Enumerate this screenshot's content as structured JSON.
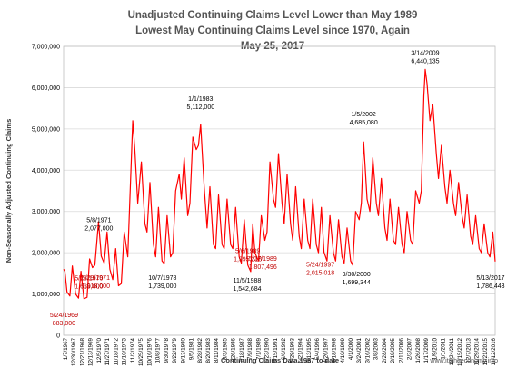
{
  "chart_data": {
    "type": "line",
    "title": [
      "Unadjusted Continuing Claims Level Lower than May 1989",
      "Lowest May Continuing Claims Level since 1970, Again",
      "May 25, 2017"
    ],
    "xlabel": "Continuing Claims Data 1967 to date",
    "ylabel": "Non-Seasonally Adjusted Continuing Claims",
    "ylim": [
      0,
      7000000
    ],
    "yticks": [
      "0",
      "1,000,000",
      "2,000,000",
      "3,000,000",
      "4,000,000",
      "5,000,000",
      "6,000,000",
      "7,000,000"
    ],
    "grid": true,
    "x_range": [
      "1967-01-07",
      "2017-05-13"
    ],
    "xtick_labels": [
      "1/7/1967",
      "12/30/1967",
      "12/21/1968",
      "12/13/1969",
      "12/5/1970",
      "11/27/1971",
      "11/18/1972",
      "11/10/1973",
      "11/2/1974",
      "10/25/1975",
      "10/16/1976",
      "10/8/1977",
      "9/30/1978",
      "9/22/1979",
      "9/13/1980",
      "9/5/1981",
      "8/28/1982",
      "8/20/1983",
      "8/11/1984",
      "8/3/1985",
      "7/26/1986",
      "7/18/1987",
      "7/9/1988",
      "7/1/1989",
      "6/23/1990",
      "6/15/1991",
      "6/6/1992",
      "5/29/1993",
      "5/21/1994",
      "5/13/1995",
      "5/4/1996",
      "4/26/1997",
      "4/18/1998",
      "4/10/1999",
      "4/1/2000",
      "3/24/2001",
      "3/16/2002",
      "3/8/2003",
      "2/28/2004",
      "2/19/2005",
      "2/11/2006",
      "2/3/2007",
      "1/26/2008",
      "1/17/2009",
      "1/9/2010",
      "1/1/2011",
      "12/24/2011",
      "12/15/2012",
      "12/7/2013",
      "11/29/2014",
      "11/21/2015",
      "11/12/2016"
    ],
    "series": [
      {
        "color": "#ff0000",
        "points": [
          [
            "1967-01-07",
            1600000
          ],
          [
            "1967-03-01",
            1550000
          ],
          [
            "1967-06-01",
            1050000
          ],
          [
            "1967-10-01",
            950000
          ],
          [
            "1968-01-15",
            1680000
          ],
          [
            "1968-06-01",
            1000000
          ],
          [
            "1968-10-01",
            900000
          ],
          [
            "1969-01-15",
            1550000
          ],
          [
            "1969-05-24",
            883000
          ],
          [
            "1969-10-01",
            920000
          ],
          [
            "1970-01-20",
            1850000
          ],
          [
            "1970-05-23",
            1639000
          ],
          [
            "1970-09-01",
            1700000
          ],
          [
            "1971-02-01",
            2750000
          ],
          [
            "1971-05-08",
            2077000
          ],
          [
            "1971-05-29",
            1918000
          ],
          [
            "1971-10-01",
            1750000
          ],
          [
            "1972-02-01",
            2500000
          ],
          [
            "1972-06-01",
            1600000
          ],
          [
            "1972-10-01",
            1350000
          ],
          [
            "1973-02-01",
            2100000
          ],
          [
            "1973-06-01",
            1200000
          ],
          [
            "1973-10-01",
            1250000
          ],
          [
            "1974-02-01",
            2500000
          ],
          [
            "1974-07-01",
            1900000
          ],
          [
            "1975-02-01",
            5200000
          ],
          [
            "1975-05-01",
            4500000
          ],
          [
            "1975-09-01",
            3200000
          ],
          [
            "1976-02-01",
            4200000
          ],
          [
            "1976-07-01",
            2700000
          ],
          [
            "1976-10-01",
            2500000
          ],
          [
            "1977-02-01",
            3700000
          ],
          [
            "1977-07-01",
            2200000
          ],
          [
            "1977-10-01",
            1900000
          ],
          [
            "1978-02-01",
            3100000
          ],
          [
            "1978-07-01",
            1800000
          ],
          [
            "1978-10-01",
            1739000
          ],
          [
            "1979-02-01",
            2900000
          ],
          [
            "1979-07-01",
            1900000
          ],
          [
            "1979-10-01",
            2000000
          ],
          [
            "1980-02-01",
            3500000
          ],
          [
            "1980-07-01",
            3900000
          ],
          [
            "1980-10-01",
            3300000
          ],
          [
            "1981-02-01",
            4300000
          ],
          [
            "1981-07-01",
            2900000
          ],
          [
            "1981-10-01",
            3200000
          ],
          [
            "1982-02-01",
            4800000
          ],
          [
            "1982-07-01",
            4500000
          ],
          [
            "1982-10-01",
            4600000
          ],
          [
            "1983-01-01",
            5112000
          ],
          [
            "1983-06-01",
            3600000
          ],
          [
            "1983-10-01",
            2600000
          ],
          [
            "1984-02-01",
            3600000
          ],
          [
            "1984-07-01",
            2200000
          ],
          [
            "1984-10-01",
            2100000
          ],
          [
            "1985-02-01",
            3400000
          ],
          [
            "1985-07-01",
            2200000
          ],
          [
            "1985-10-01",
            2100000
          ],
          [
            "1986-02-01",
            3300000
          ],
          [
            "1986-07-01",
            2200000
          ],
          [
            "1986-10-01",
            2100000
          ],
          [
            "1987-02-01",
            3100000
          ],
          [
            "1987-07-01",
            1900000
          ],
          [
            "1987-10-01",
            1750000
          ],
          [
            "1988-02-01",
            2800000
          ],
          [
            "1988-07-01",
            1700000
          ],
          [
            "1988-11-05",
            1542684
          ],
          [
            "1989-02-01",
            2700000
          ],
          [
            "1989-05-06",
            1995218
          ],
          [
            "1989-10-01",
            1800000
          ],
          [
            "1990-02-01",
            2900000
          ],
          [
            "1990-07-01",
            2300000
          ],
          [
            "1990-10-01",
            2500000
          ],
          [
            "1991-02-01",
            4200000
          ],
          [
            "1991-07-01",
            3300000
          ],
          [
            "1991-10-01",
            3100000
          ],
          [
            "1992-02-01",
            4400000
          ],
          [
            "1992-07-01",
            3200000
          ],
          [
            "1992-10-01",
            2700000
          ],
          [
            "1993-02-01",
            3900000
          ],
          [
            "1993-07-01",
            2700000
          ],
          [
            "1993-10-01",
            2300000
          ],
          [
            "1994-02-01",
            3600000
          ],
          [
            "1994-07-01",
            2400000
          ],
          [
            "1994-10-01",
            2100000
          ],
          [
            "1995-02-01",
            3300000
          ],
          [
            "1995-07-01",
            2300000
          ],
          [
            "1995-10-01",
            2100000
          ],
          [
            "1996-02-01",
            3300000
          ],
          [
            "1996-07-01",
            2200000
          ],
          [
            "1996-10-01",
            2000000
          ],
          [
            "1997-02-01",
            3100000
          ],
          [
            "1997-05-24",
            2015018
          ],
          [
            "1997-10-01",
            1800000
          ],
          [
            "1998-02-01",
            2900000
          ],
          [
            "1998-07-01",
            2000000
          ],
          [
            "1998-10-01",
            1800000
          ],
          [
            "1999-02-01",
            2800000
          ],
          [
            "1999-07-01",
            1900000
          ],
          [
            "1999-10-01",
            1750000
          ],
          [
            "2000-02-01",
            2600000
          ],
          [
            "2000-07-01",
            1800000
          ],
          [
            "2000-09-30",
            1699344
          ],
          [
            "2001-02-01",
            3000000
          ],
          [
            "2001-07-01",
            2800000
          ],
          [
            "2001-10-01",
            3200000
          ],
          [
            "2002-01-05",
            4685080
          ],
          [
            "2002-06-01",
            3300000
          ],
          [
            "2002-10-01",
            3000000
          ],
          [
            "2003-02-01",
            4300000
          ],
          [
            "2003-07-01",
            3200000
          ],
          [
            "2003-10-01",
            2900000
          ],
          [
            "2004-02-01",
            3800000
          ],
          [
            "2004-07-01",
            2600000
          ],
          [
            "2004-10-01",
            2300000
          ],
          [
            "2005-02-01",
            3300000
          ],
          [
            "2005-07-01",
            2300000
          ],
          [
            "2005-10-01",
            2200000
          ],
          [
            "2006-02-01",
            3100000
          ],
          [
            "2006-07-01",
            2200000
          ],
          [
            "2006-10-01",
            2000000
          ],
          [
            "2007-02-01",
            3000000
          ],
          [
            "2007-07-01",
            2300000
          ],
          [
            "2007-10-01",
            2200000
          ],
          [
            "2008-02-01",
            3500000
          ],
          [
            "2008-07-01",
            3200000
          ],
          [
            "2008-10-01",
            3500000
          ],
          [
            "2009-01-15",
            5800000
          ],
          [
            "2009-03-14",
            6440135
          ],
          [
            "2009-06-01",
            6100000
          ],
          [
            "2009-10-01",
            5200000
          ],
          [
            "2010-02-01",
            5600000
          ],
          [
            "2010-07-01",
            4400000
          ],
          [
            "2010-10-01",
            3800000
          ],
          [
            "2011-02-01",
            4600000
          ],
          [
            "2011-07-01",
            3600000
          ],
          [
            "2011-10-01",
            3200000
          ],
          [
            "2012-02-01",
            4000000
          ],
          [
            "2012-07-01",
            3200000
          ],
          [
            "2012-10-01",
            2900000
          ],
          [
            "2013-02-01",
            3700000
          ],
          [
            "2013-07-01",
            2900000
          ],
          [
            "2013-10-01",
            2600000
          ],
          [
            "2014-02-01",
            3400000
          ],
          [
            "2014-07-01",
            2400000
          ],
          [
            "2014-10-01",
            2200000
          ],
          [
            "2015-02-01",
            2900000
          ],
          [
            "2015-07-01",
            2100000
          ],
          [
            "2015-10-01",
            2000000
          ],
          [
            "2016-02-01",
            2700000
          ],
          [
            "2016-07-01",
            2000000
          ],
          [
            "2016-10-01",
            1900000
          ],
          [
            "2017-02-01",
            2500000
          ],
          [
            "2017-05-13",
            1786443
          ]
        ]
      }
    ],
    "annotations": [
      {
        "date": "5/24/1969",
        "value": "883,000",
        "x": "1969-05-24",
        "y": 883000,
        "color": "#c00000"
      },
      {
        "date": "5/23/1970",
        "value": "1,639,000",
        "x": "1970-05-23",
        "y": 1639000,
        "color": "#c00000"
      },
      {
        "date": "5/8/1971",
        "value": "2,077,000",
        "x": "1971-05-08",
        "y": 2077000,
        "color": "#000000"
      },
      {
        "date": "5/29/1971",
        "value": "1,918,000",
        "x": "1971-05-29",
        "y": 1918000,
        "color": "#c00000"
      },
      {
        "date": "10/7/1978",
        "value": "1,739,000",
        "x": "1978-10-07",
        "y": 1739000,
        "color": "#000000"
      },
      {
        "date": "1/1/1983",
        "value": "5,112,000",
        "x": "1983-01-01",
        "y": 5112000,
        "color": "#000000"
      },
      {
        "date": "5/6/1989",
        "value": "1,995,218",
        "x": "1989-05-06",
        "y": 1995218,
        "color": "#c00000"
      },
      {
        "date": "11/5/1988",
        "value": "1,542,684",
        "x": "1988-11-05",
        "y": 1542684,
        "color": "#000000"
      },
      {
        "date": "5/27/1989",
        "value": "1,807,496",
        "x": "1989-05-27",
        "y": 1807496,
        "color": "#c00000"
      },
      {
        "date": "5/24/1997",
        "value": "2,015,018",
        "x": "1997-05-24",
        "y": 2015018,
        "color": "#c00000"
      },
      {
        "date": "9/30/2000",
        "value": "1,699,344",
        "x": "2000-09-30",
        "y": 1699344,
        "color": "#000000"
      },
      {
        "date": "1/5/2002",
        "value": "4,685,080",
        "x": "2002-01-05",
        "y": 4685080,
        "color": "#000000"
      },
      {
        "date": "3/14/2009",
        "value": "6,440,135",
        "x": "2009-03-14",
        "y": 6440135,
        "color": "#000000"
      },
      {
        "date": "5/13/2017",
        "value": "1,786,443",
        "x": "2017-05-13",
        "y": 1786443,
        "color": "#000000"
      }
    ],
    "watermark": "www.itstheeconomy.info"
  }
}
